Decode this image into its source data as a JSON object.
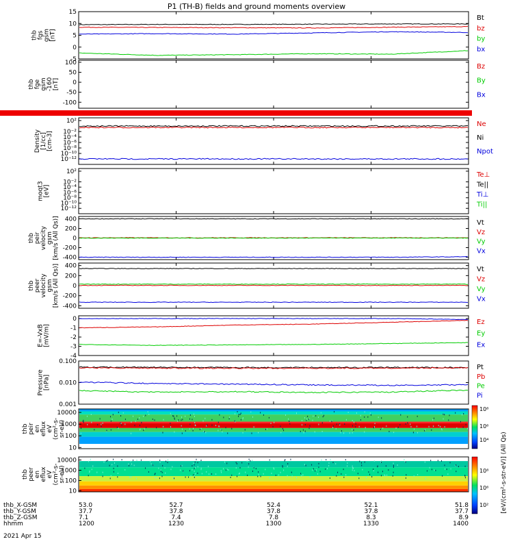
{
  "chart_data": {
    "type": "line",
    "title": "P1 (TH-B) fields and ground moments overview",
    "time": {
      "ticks": [
        "1200",
        "1230",
        "1300",
        "1330",
        "1400"
      ],
      "date": "2021 Apr 15",
      "ephemeris": [
        {
          "name": "thb_X-GSM",
          "values": [
            "53.0",
            "52.7",
            "52.4",
            "52.1",
            "51.8"
          ]
        },
        {
          "name": "thb_Y-GSM",
          "values": [
            "37.7",
            "37.8",
            "37.8",
            "37.8",
            "37.7"
          ]
        },
        {
          "name": "thb_Z-GSM",
          "values": [
            "7.1",
            "7.4",
            "7.8",
            "8.3",
            "8.9"
          ]
        },
        {
          "name": "hhmm",
          "values": [
            "1200",
            "1230",
            "1300",
            "1330",
            "1400"
          ]
        }
      ]
    },
    "panels": [
      {
        "id": "p1",
        "ylabel": [
          "thb",
          "fgs",
          "gsm",
          "[nT]"
        ],
        "ylim": [
          -5,
          15
        ],
        "ticks": [
          "15",
          "10",
          "5",
          "0",
          "-5"
        ],
        "tickvals": [
          15,
          10,
          5,
          0,
          -5
        ],
        "series": [
          {
            "name": "Bt",
            "color": "#000000",
            "values": [
              9.5,
              9.6,
              9.6,
              9.7,
              9.8,
              9.8
            ]
          },
          {
            "name": "bz",
            "color": "#dd0000",
            "values": [
              8.4,
              8.3,
              8.2,
              8.1,
              8.4,
              8.7
            ]
          },
          {
            "name": "by",
            "color": "#00cc00",
            "values": [
              -2.5,
              -3.5,
              -3.2,
              -2.8,
              -3.0,
              -1.5
            ]
          },
          {
            "name": "bx",
            "color": "#0000dd",
            "values": [
              5.5,
              5.7,
              5.5,
              6.0,
              6.5,
              6.2
            ]
          }
        ]
      },
      {
        "id": "p2",
        "ylabel": [
          "thb",
          "fge",
          "gsm",
          "-160",
          "[nT]"
        ],
        "ylim": [
          -130,
          110
        ],
        "ticks": [
          "100",
          "50",
          "0",
          "-50",
          "-100"
        ],
        "tickvals": [
          100,
          50,
          0,
          -50,
          -100
        ],
        "series": [
          {
            "name": "Bz",
            "color": "#dd0000",
            "values": []
          },
          {
            "name": "By",
            "color": "#00cc00",
            "values": []
          },
          {
            "name": "Bx",
            "color": "#0000dd",
            "values": []
          }
        ]
      },
      {
        "id": "p3",
        "ylabel": [
          "Density",
          "[1/cc]",
          "[cm-3]"
        ],
        "ylim": [
          -14,
          3
        ],
        "log": true,
        "ticks": [
          "10²",
          "10⁻²",
          "10⁻⁴",
          "10⁻⁶",
          "10⁻⁸",
          "10⁻¹⁰",
          "10⁻¹²"
        ],
        "tickvals": [
          2,
          -2,
          -4,
          -6,
          -8,
          -10,
          -12
        ],
        "series": [
          {
            "name": "Ne",
            "color": "#dd0000",
            "values": [
              0.3,
              0.3,
              0.3,
              0.3,
              0.3,
              0.3
            ]
          },
          {
            "name": "Ni",
            "color": "#000000",
            "values": [
              1.0,
              1.0,
              1.0,
              1.0,
              1.0,
              1.0
            ]
          },
          {
            "name": "Npot",
            "color": "#0000dd",
            "values": [
              0.0,
              0.0,
              0.0,
              0.0,
              0.0,
              0.0
            ]
          }
        ]
      },
      {
        "id": "p4",
        "ylabel": [
          "moqt3",
          "[eV]"
        ],
        "ylim": [
          -14,
          3
        ],
        "log": true,
        "ticks": [
          "10²",
          "10⁻²",
          "10⁻⁴",
          "10⁻⁶",
          "10⁻⁸",
          "10⁻¹⁰",
          "10⁻¹²"
        ],
        "tickvals": [
          2,
          -2,
          -4,
          -6,
          -8,
          -10,
          -12
        ],
        "series": [
          {
            "name": "Te⊥",
            "color": "#dd0000",
            "values": []
          },
          {
            "name": "Te||",
            "color": "#000000",
            "values": []
          },
          {
            "name": "Ti⊥",
            "color": "#0000dd",
            "values": []
          },
          {
            "name": "Ti||",
            "color": "#00cc00",
            "values": []
          }
        ]
      },
      {
        "id": "p5",
        "ylabel": [
          "thb",
          "peir",
          "velocity",
          "gsm",
          "[km/s (All Qs)]"
        ],
        "ylim": [
          -450,
          450
        ],
        "ticks": [
          "400",
          "200",
          "0",
          "-200",
          "-400"
        ],
        "tickvals": [
          400,
          200,
          0,
          -200,
          -400
        ],
        "series": [
          {
            "name": "Vt",
            "color": "#000000",
            "values": [
              400,
              400,
              400,
              400,
              400,
              400
            ]
          },
          {
            "name": "Vz",
            "color": "#dd0000",
            "values": [
              5,
              5,
              5,
              5,
              5,
              5
            ]
          },
          {
            "name": "Vy",
            "color": "#00cc00",
            "values": [
              0,
              0,
              0,
              0,
              0,
              0
            ]
          },
          {
            "name": "Vx",
            "color": "#0000dd",
            "values": [
              -400,
              -400,
              -400,
              -400,
              -400,
              -390
            ]
          }
        ]
      },
      {
        "id": "p6",
        "ylabel": [
          "thb",
          "peer",
          "velocity",
          "gsm",
          "[km/s (All Qs)]"
        ],
        "ylim": [
          -450,
          450
        ],
        "ticks": [
          "400",
          "200",
          "0",
          "-200",
          "-400"
        ],
        "tickvals": [
          400,
          200,
          0,
          -200,
          -400
        ],
        "series": [
          {
            "name": "Vt",
            "color": "#000000",
            "values": [
              340,
              340,
              340,
              340,
              340,
              340
            ]
          },
          {
            "name": "Vz",
            "color": "#dd0000",
            "values": [
              5,
              5,
              5,
              5,
              5,
              5
            ]
          },
          {
            "name": "Vy",
            "color": "#00cc00",
            "values": [
              30,
              30,
              30,
              30,
              30,
              30
            ]
          },
          {
            "name": "Vx",
            "color": "#0000dd",
            "values": [
              -330,
              -330,
              -330,
              -330,
              -330,
              -330
            ]
          }
        ]
      },
      {
        "id": "p7",
        "ylabel": [
          "E=-VxB",
          "[mV/m]"
        ],
        "ylim": [
          -4,
          0.3
        ],
        "ticks": [
          "0",
          "-1",
          "-2",
          "-3",
          "-4"
        ],
        "tickvals": [
          0,
          -1,
          -2,
          -3,
          -4
        ],
        "series": [
          {
            "name": "Ez",
            "color": "#dd0000",
            "values": [
              -1.0,
              -0.9,
              -0.7,
              -0.6,
              -0.4,
              -0.2
            ]
          },
          {
            "name": "Ey",
            "color": "#00cc00",
            "values": [
              -2.8,
              -2.9,
              -2.85,
              -2.8,
              -2.7,
              -2.6
            ]
          },
          {
            "name": "Ex",
            "color": "#0000dd",
            "values": [
              0,
              0,
              0,
              0,
              0,
              -0.1
            ]
          }
        ]
      },
      {
        "id": "p8",
        "ylabel": [
          "Pressure",
          "[nPa]"
        ],
        "ylim": [
          -3,
          -1
        ],
        "log": true,
        "ticks": [
          "0.100",
          "0.010",
          "0.001"
        ],
        "tickvals": [
          -1,
          -2,
          -3
        ],
        "series": [
          {
            "name": "Pt",
            "color": "#000000",
            "values": [
              0.052,
              0.051,
              0.05,
              0.05,
              0.05,
              0.05
            ]
          },
          {
            "name": "Pb",
            "color": "#dd0000",
            "values": [
              0.048,
              0.047,
              0.046,
              0.046,
              0.047,
              0.048
            ]
          },
          {
            "name": "Pe",
            "color": "#00cc00",
            "values": [
              0.0042,
              0.0036,
              0.0038,
              0.0035,
              0.0036,
              0.0045
            ]
          },
          {
            "name": "Pi",
            "color": "#0000dd",
            "values": [
              0.0105,
              0.009,
              0.0085,
              0.0078,
              0.0075,
              0.008
            ]
          }
        ]
      },
      {
        "id": "p9",
        "ylabel": [
          "thb",
          "peir",
          "en",
          "eflux",
          "eV",
          "(cm²-s-",
          "sr-eV)"
        ],
        "type": "heatmap",
        "ticks": [
          "10000",
          "1000",
          "100",
          "10"
        ]
      },
      {
        "id": "p10",
        "ylabel": [
          "thb",
          "peer",
          "en",
          "eflux",
          "eV",
          "(cm²-s-",
          "sr-eV)"
        ],
        "type": "heatmap",
        "ticks": [
          "10000",
          "1000",
          "100",
          "10"
        ]
      }
    ],
    "colorbar": {
      "ticks": [
        "10⁸",
        "10⁶",
        "10⁴",
        "10²"
      ],
      "label": "[eV/(cm²-s-str-eV)] (All Qs)"
    }
  }
}
